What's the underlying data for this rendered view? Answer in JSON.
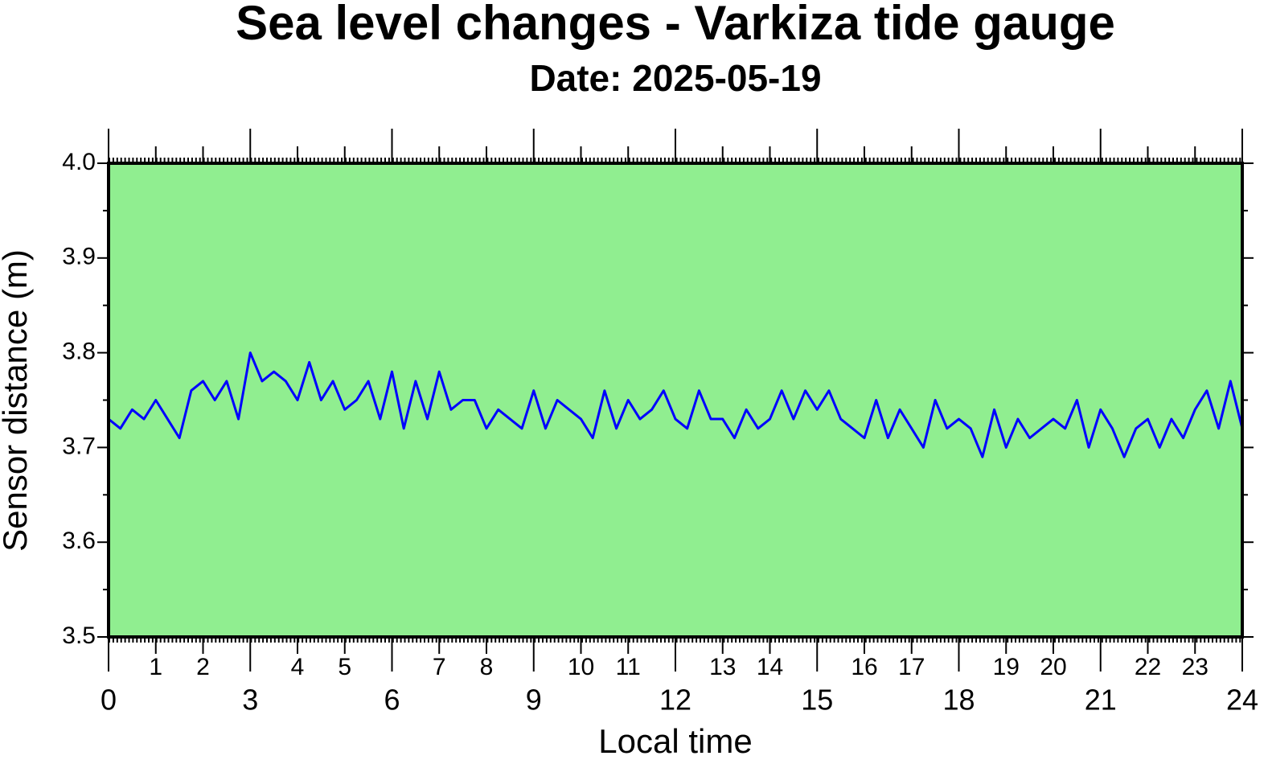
{
  "chart_data": {
    "type": "line",
    "title": "Sea level changes - Varkiza tide gauge",
    "subtitle": "Date: 2025-05-19",
    "xlabel": "Local time",
    "ylabel": "Sensor distance (m)",
    "background": "#90ee90",
    "xlim": [
      0,
      24
    ],
    "xticks": [
      0,
      3,
      6,
      9,
      12,
      15,
      18,
      21,
      24
    ],
    "xticks_minor": [
      1,
      2,
      4,
      5,
      7,
      8,
      10,
      11,
      13,
      14,
      16,
      17,
      19,
      20,
      22,
      23
    ],
    "ylim": [
      3.5,
      4.0
    ],
    "yticks": [
      {
        "value": 3.5,
        "label": "3.5"
      },
      {
        "value": 3.6,
        "label": "3.6"
      },
      {
        "value": 3.7,
        "label": "3.7"
      },
      {
        "value": 3.8,
        "label": "3.8"
      },
      {
        "value": 3.9,
        "label": "3.9"
      },
      {
        "value": 4.0,
        "label": "4.0"
      }
    ],
    "yticks_minor": [
      3.55,
      3.65,
      3.75,
      3.85,
      3.95
    ],
    "series": [
      {
        "color": "#0000ff",
        "x": [
          0,
          0.25,
          0.5,
          0.75,
          1,
          1.25,
          1.5,
          1.75,
          2,
          2.25,
          2.5,
          2.75,
          3,
          3.25,
          3.5,
          3.75,
          4,
          4.25,
          4.5,
          4.75,
          5,
          5.25,
          5.5,
          5.75,
          6,
          6.25,
          6.5,
          6.75,
          7,
          7.25,
          7.5,
          7.75,
          8,
          8.25,
          8.5,
          8.75,
          9,
          9.25,
          9.5,
          9.75,
          10,
          10.25,
          10.5,
          10.75,
          11,
          11.25,
          11.5,
          11.75,
          12,
          12.25,
          12.5,
          12.75,
          13,
          13.25,
          13.5,
          13.75,
          14,
          14.25,
          14.5,
          14.75,
          15,
          15.25,
          15.5,
          15.75,
          16,
          16.25,
          16.5,
          16.75,
          17,
          17.25,
          17.5,
          17.75,
          18,
          18.25,
          18.5,
          18.75,
          19,
          19.25,
          19.5,
          19.75,
          20,
          20.25,
          20.5,
          20.75,
          21,
          21.25,
          21.5,
          21.75,
          22,
          22.25,
          22.5,
          22.75,
          23,
          23.25,
          23.5,
          23.75,
          24
        ],
        "values": [
          3.73,
          3.72,
          3.74,
          3.73,
          3.75,
          3.73,
          3.71,
          3.76,
          3.77,
          3.75,
          3.77,
          3.73,
          3.8,
          3.77,
          3.78,
          3.77,
          3.75,
          3.79,
          3.75,
          3.77,
          3.74,
          3.75,
          3.77,
          3.73,
          3.78,
          3.72,
          3.77,
          3.73,
          3.78,
          3.74,
          3.75,
          3.75,
          3.72,
          3.74,
          3.73,
          3.72,
          3.76,
          3.72,
          3.75,
          3.74,
          3.73,
          3.71,
          3.76,
          3.72,
          3.75,
          3.73,
          3.74,
          3.76,
          3.73,
          3.72,
          3.76,
          3.73,
          3.73,
          3.71,
          3.74,
          3.72,
          3.73,
          3.76,
          3.73,
          3.76,
          3.74,
          3.76,
          3.73,
          3.72,
          3.71,
          3.75,
          3.71,
          3.74,
          3.72,
          3.7,
          3.75,
          3.72,
          3.73,
          3.72,
          3.69,
          3.74,
          3.7,
          3.73,
          3.71,
          3.72,
          3.73,
          3.72,
          3.75,
          3.7,
          3.74,
          3.72,
          3.69,
          3.72,
          3.73,
          3.7,
          3.73,
          3.71,
          3.74,
          3.76,
          3.72,
          3.77,
          3.72
        ]
      }
    ]
  }
}
